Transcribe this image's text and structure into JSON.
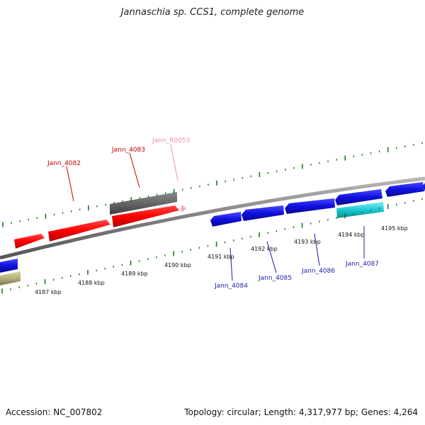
{
  "title": "Jannaschia sp. CCS1, complete genome",
  "footer": {
    "accession": "Accession: NC_007802",
    "summary": "Topology: circular; Length: 4,317,977 bp; Genes: 4,264"
  },
  "colors": {
    "forward_gene": "#ff0000",
    "reverse_gene": "#1010e0",
    "pseudo_gene": "#666666",
    "rna_gene": "#f4a6c4",
    "rrna_like": "#19c8d0",
    "other_gene": "#b5b07a",
    "backbone": "#808080",
    "tick": "#1a7a1a",
    "label_forward": "#c00000",
    "label_reverse": "#1c1cb0",
    "label_rna": "#f08ab0"
  },
  "scale": {
    "labels": [
      "4187 kbp",
      "4188 kbp",
      "4189 kbp",
      "4190 kbp",
      "4191 kbp",
      "4192 kbp",
      "4193 kbp",
      "4194 kbp",
      "4195 kbp"
    ]
  },
  "labels": {
    "Jann_4082": "Jann_4082",
    "Jann_4083": "Jann_4083",
    "Jann_R0053": "Jann_R0053",
    "Jann_4084": "Jann_4084",
    "Jann_4085": "Jann_4085",
    "Jann_4086": "Jann_4086",
    "Jann_4087": "Jann_4087"
  }
}
